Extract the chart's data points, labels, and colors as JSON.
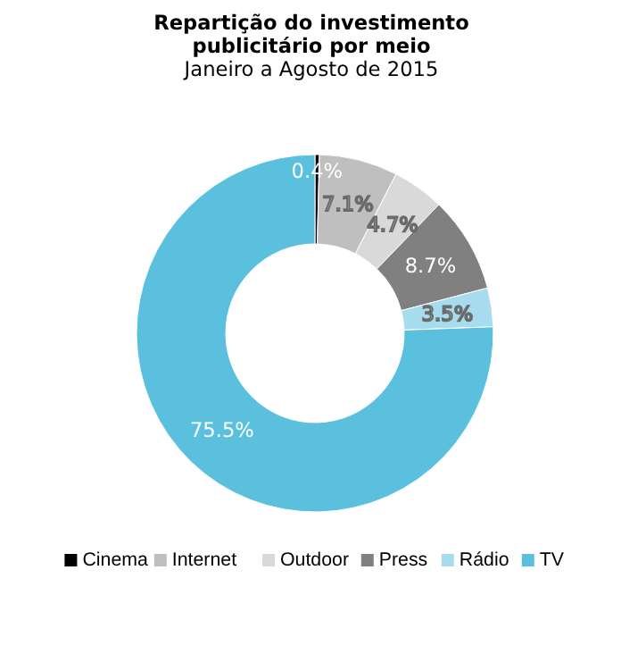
{
  "chart_data": {
    "type": "donut",
    "title": "Repartição do investimento publicitário por meio",
    "subtitle": "Janeiro a Agosto de 2015",
    "categories": [
      "Cinema",
      "Internet",
      "Outdoor",
      "Press",
      "Rádio",
      "TV"
    ],
    "values": [
      0.4,
      7.1,
      4.7,
      8.7,
      3.5,
      75.5
    ],
    "colors": [
      "#000000",
      "#bfbfbf",
      "#d9d9d9",
      "#808080",
      "#a6dced",
      "#5bc0de"
    ],
    "value_labels": [
      "0.4%",
      "7.1%",
      "4.7%",
      "8.7%",
      "3.5%",
      "75.5%"
    ],
    "legend": "bottom"
  }
}
